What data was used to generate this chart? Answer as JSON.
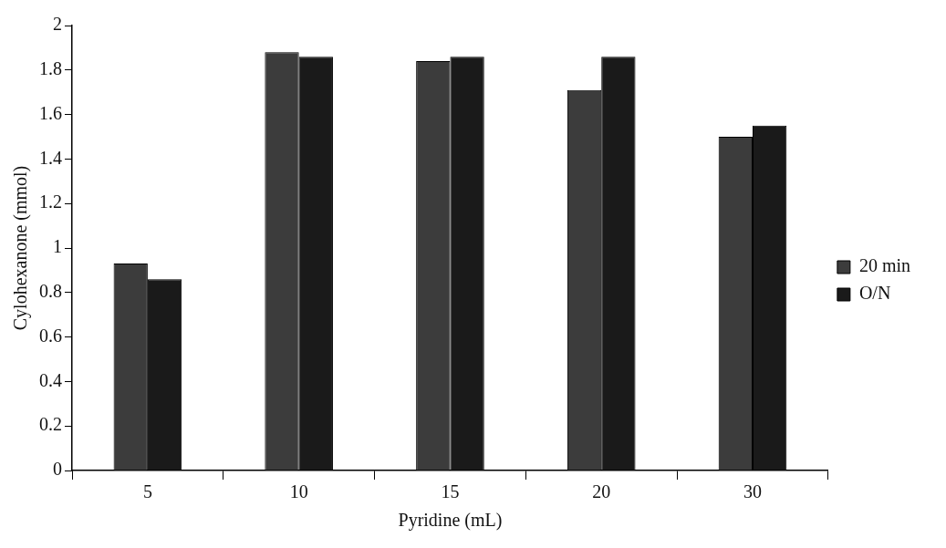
{
  "chart_data": {
    "type": "bar",
    "xlabel": "Pyridine (mL)",
    "ylabel": "Cylohexanone (mmol)",
    "categories": [
      "5",
      "10",
      "15",
      "20",
      "30"
    ],
    "series": [
      {
        "name": "20 min",
        "color": "#3c3c3c",
        "values": [
          0.93,
          1.88,
          1.84,
          1.71,
          1.5
        ]
      },
      {
        "name": "O/N",
        "color": "#1a1a1a",
        "values": [
          0.86,
          1.86,
          1.86,
          1.86,
          1.55
        ]
      }
    ],
    "ylim": [
      0,
      2
    ],
    "yticks": [
      0,
      {
        "value": 0.2,
        "label": "0.2"
      },
      {
        "value": 0.4,
        "label": "0.4"
      },
      {
        "value": 0.6,
        "label": "0.6"
      },
      {
        "value": 0.8,
        "label": "0.8"
      },
      1,
      {
        "value": 1.2,
        "label": "1.2"
      },
      {
        "value": 1.4,
        "label": "1.4"
      },
      {
        "value": 1.6,
        "label": "1.6"
      },
      {
        "value": 1.8,
        "label": "1.8"
      },
      2
    ],
    "grid": false,
    "legend": "right"
  }
}
